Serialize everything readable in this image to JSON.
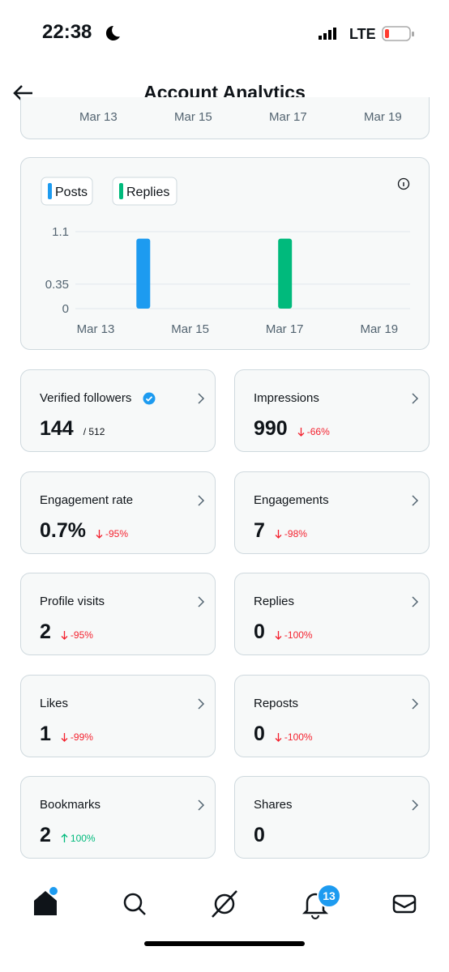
{
  "status_bar": {
    "time": "22:38",
    "network": "LTE"
  },
  "header": {
    "title": "Account Analytics"
  },
  "top_chart_axis": [
    "Mar 13",
    "Mar 15",
    "Mar 17",
    "Mar 19"
  ],
  "chart_data": {
    "type": "bar",
    "categories": [
      "Mar 13",
      null,
      "Mar 15",
      null,
      "Mar 17",
      null,
      "Mar 19"
    ],
    "series": [
      {
        "name": "Posts",
        "color": "#1d9bf0",
        "values": [
          0,
          1,
          0,
          0,
          0,
          0,
          0
        ]
      },
      {
        "name": "Replies",
        "color": "#00ba7c",
        "values": [
          0,
          0,
          0,
          0,
          1,
          0,
          0
        ]
      }
    ],
    "ylim": [
      0,
      1.1
    ],
    "yticks": [
      0,
      0.35,
      1.1
    ],
    "grid": true
  },
  "stats": [
    {
      "label": "Verified followers",
      "value": "144",
      "total": "/ 512",
      "verified": true
    },
    {
      "label": "Impressions",
      "value": "990",
      "change": "-66%",
      "direction": "down"
    },
    {
      "label": "Engagement rate",
      "value": "0.7%",
      "change": "-95%",
      "direction": "down"
    },
    {
      "label": "Engagements",
      "value": "7",
      "change": "-98%",
      "direction": "down"
    },
    {
      "label": "Profile visits",
      "value": "2",
      "change": "-95%",
      "direction": "down"
    },
    {
      "label": "Replies",
      "value": "0",
      "change": "-100%",
      "direction": "down"
    },
    {
      "label": "Likes",
      "value": "1",
      "change": "-99%",
      "direction": "down"
    },
    {
      "label": "Reposts",
      "value": "0",
      "change": "-100%",
      "direction": "down"
    },
    {
      "label": "Bookmarks",
      "value": "2",
      "change": "100%",
      "direction": "up"
    },
    {
      "label": "Shares",
      "value": "0"
    }
  ],
  "nav": {
    "notification_badge": "13"
  }
}
